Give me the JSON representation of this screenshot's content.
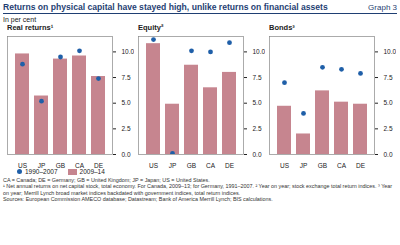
{
  "header": {
    "title": "Returns on physical capital have stayed high, unlike returns on financial assets",
    "graph_label": "Graph 3",
    "unit": "In per cent"
  },
  "chart_data": [
    {
      "type": "bar",
      "title": "Real returns¹",
      "categories": [
        "US",
        "JP",
        "GB",
        "CA",
        "DE"
      ],
      "series": [
        {
          "name": "1990–2007",
          "type": "scatter",
          "marker": "circle",
          "color": "#1f5fa8",
          "values": [
            8.8,
            5.2,
            9.5,
            10.1,
            7.4
          ]
        },
        {
          "name": "2009–14",
          "type": "bar",
          "color": "#c6858f",
          "values": [
            9.8,
            5.7,
            9.3,
            9.6,
            7.6
          ]
        }
      ],
      "ylim": [
        0,
        11.5
      ],
      "yticks": [
        {
          "value": 0,
          "label": "0.0"
        },
        {
          "value": 2.5,
          "label": "2.5"
        },
        {
          "value": 5,
          "label": "5.0"
        },
        {
          "value": 7.5,
          "label": "7.5"
        },
        {
          "value": 10,
          "label": "10.0"
        }
      ],
      "legend": "bottom"
    },
    {
      "type": "bar",
      "title": "Equity²",
      "categories": [
        "US",
        "JP",
        "GB",
        "CA",
        "DE"
      ],
      "series": [
        {
          "name": "1990–2007",
          "type": "scatter",
          "marker": "circle",
          "color": "#1f5fa8",
          "values": [
            11.2,
            0.1,
            10.1,
            10.0,
            10.9
          ]
        },
        {
          "name": "2009–14",
          "type": "bar",
          "color": "#c6858f",
          "values": [
            10.8,
            4.9,
            8.7,
            6.5,
            8.0
          ]
        }
      ],
      "ylim": [
        0,
        11.5
      ],
      "yticks": [
        {
          "value": 0,
          "label": "0.0"
        },
        {
          "value": 2.5,
          "label": "2.5"
        },
        {
          "value": 5,
          "label": "5.0"
        },
        {
          "value": 7.5,
          "label": "7.5"
        },
        {
          "value": 10,
          "label": "10.0"
        }
      ]
    },
    {
      "type": "bar",
      "title": "Bonds³",
      "categories": [
        "US",
        "JP",
        "GB",
        "CA",
        "DE"
      ],
      "series": [
        {
          "name": "1990–2007",
          "type": "scatter",
          "marker": "circle",
          "color": "#1f5fa8",
          "values": [
            7.0,
            4.0,
            8.5,
            8.3,
            7.9
          ]
        },
        {
          "name": "2009–14",
          "type": "bar",
          "color": "#c6858f",
          "values": [
            4.7,
            2.0,
            6.2,
            5.1,
            4.9
          ]
        }
      ],
      "ylim": [
        0,
        11.5
      ],
      "yticks": [
        {
          "value": 0,
          "label": "0.0"
        },
        {
          "value": 2.5,
          "label": "2.5"
        },
        {
          "value": 5,
          "label": "5.0"
        },
        {
          "value": 7.5,
          "label": "7.5"
        },
        {
          "value": 10,
          "label": "10.0"
        }
      ]
    }
  ],
  "notes": [
    "CA = Canada; DE = Germany; GB = United Kingdom; JP = Japan; US = United States.",
    "¹ Net annual returns on net capital stock, total economy. For Canada, 2009–13; for Germany, 1991–2007. ² Year on year; stock exchange total return indices. ³ Year on year; Merrill Lynch broad market indices backdated with government indices, total return indices.",
    "Sources: European Commission AMECO database; Datastream; Bank of America Merrill Lynch; BIS calculations."
  ]
}
